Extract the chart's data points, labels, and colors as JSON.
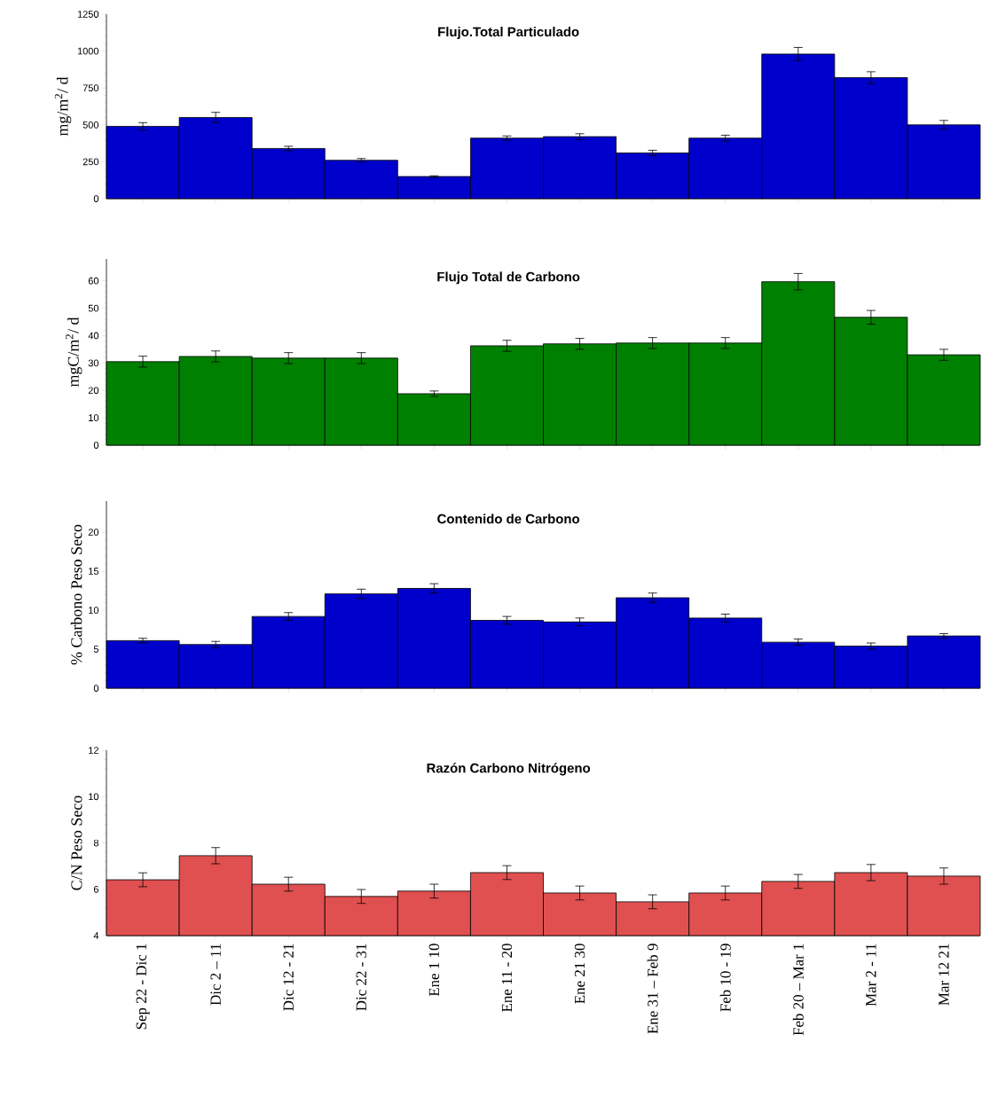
{
  "chart_data": [
    {
      "type": "bar",
      "title": "Flujo.Total Particulado",
      "ylabel": "mg/m$^{2}$/ d",
      "values": [
        490,
        550,
        340,
        260,
        150,
        410,
        420,
        310,
        410,
        980,
        820,
        500
      ],
      "errors": [
        25,
        35,
        15,
        12,
        5,
        15,
        20,
        18,
        20,
        45,
        40,
        30
      ],
      "color": "#0000cc",
      "ylim": [
        0,
        1250
      ],
      "yticks": [
        0,
        250,
        500,
        750,
        1000,
        1250
      ],
      "tick_labels": "y"
    },
    {
      "type": "bar",
      "title": "Flujo Total de Carbono",
      "ylabel": "mgC/m$^{2}$/ d",
      "values": [
        30.5,
        32.4,
        31.8,
        31.8,
        18.8,
        36.3,
        37,
        37.3,
        37.3,
        59.7,
        46.7,
        33
      ],
      "errors": [
        2,
        2,
        2,
        2,
        1,
        2,
        2,
        2,
        2,
        3,
        2.5,
        2
      ],
      "color": "#008000",
      "ylim": [
        0,
        68
      ],
      "yticks": [
        0,
        10,
        20,
        30,
        40,
        50,
        60
      ],
      "tick_labels": "y"
    },
    {
      "type": "bar",
      "title": "Contenido de Carbono",
      "ylabel": "% Carbono Peso Seco",
      "values": [
        6.1,
        5.6,
        9.2,
        12.1,
        12.8,
        8.7,
        8.5,
        11.6,
        9.0,
        5.9,
        5.4,
        6.7
      ],
      "errors": [
        0.3,
        0.4,
        0.5,
        0.6,
        0.6,
        0.5,
        0.5,
        0.6,
        0.5,
        0.4,
        0.4,
        0.3
      ],
      "color": "#0000cc",
      "ylim": [
        0,
        24
      ],
      "yticks": [
        0,
        5,
        10,
        15,
        20
      ],
      "tick_labels": "y"
    },
    {
      "type": "bar",
      "title": "Razón Carbono Nitrógeno",
      "ylabel": "C/N  Peso Seco",
      "categories": [
        "Sep 22 - Dic 1",
        "Dic 2 – 11",
        "Dic 12 - 21",
        "Dic 22 - 31",
        "Ene 1 10",
        "Ene 11 - 20",
        "Ene 21 30",
        "Ene 31 – Feb 9",
        "Feb 10 - 19",
        "Feb 20 – Mar 1",
        "Mar 2 - 11",
        "Mar 12 21"
      ],
      "values": [
        6.41,
        7.45,
        6.22,
        5.69,
        5.92,
        6.72,
        5.84,
        5.46,
        5.84,
        6.34,
        6.72,
        6.57
      ],
      "errors": [
        0.3,
        0.35,
        0.3,
        0.3,
        0.3,
        0.3,
        0.3,
        0.3,
        0.3,
        0.3,
        0.35,
        0.35
      ],
      "color": "#e05050",
      "ylim": [
        4,
        12
      ],
      "yticks": [
        4,
        6,
        8,
        10,
        12
      ]
    }
  ]
}
